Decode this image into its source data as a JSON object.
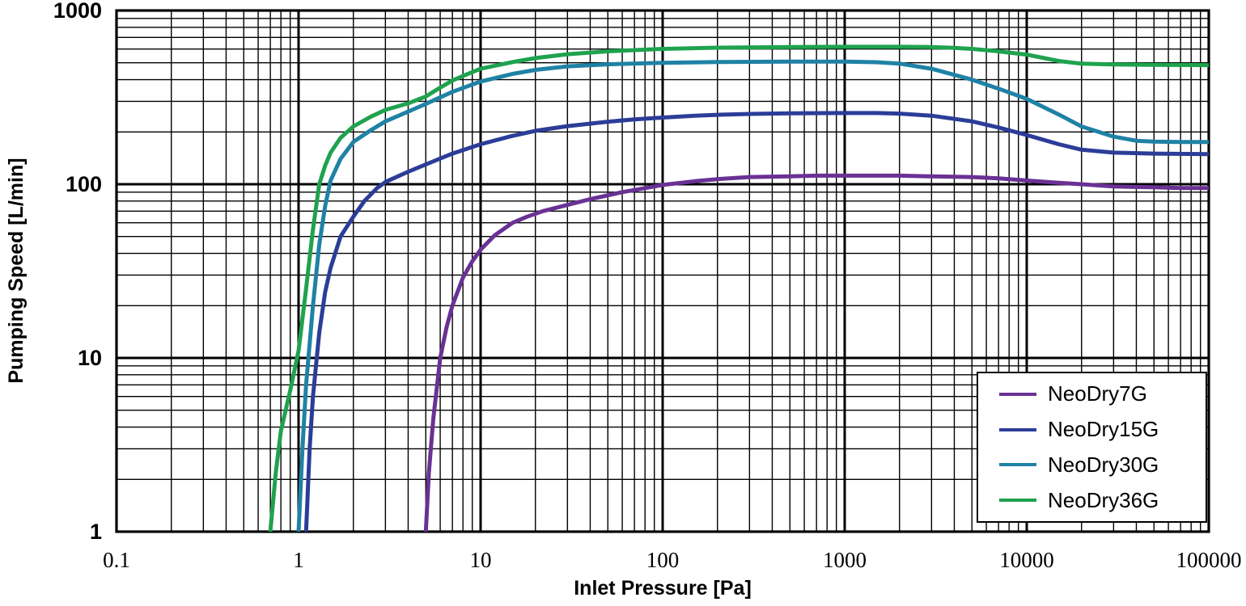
{
  "figure": {
    "background_color": "#ffffff",
    "grid_color": "#000000",
    "border_color": "#000000"
  },
  "axes": {
    "x": {
      "title": "Inlet Pressure [Pa]",
      "scale": "log",
      "min": 0.1,
      "max": 100000,
      "tick_values": [
        0.1,
        1,
        10,
        100,
        1000,
        10000,
        100000
      ],
      "tick_labels": [
        "0.1",
        "1",
        "10",
        "100",
        "1000",
        "10000",
        "100000"
      ]
    },
    "y": {
      "title": "Pumping Speed [L/min]",
      "scale": "log",
      "min": 1,
      "max": 1000,
      "tick_values": [
        1,
        10,
        100,
        1000
      ],
      "tick_labels": [
        "1",
        "10",
        "100",
        "1000"
      ]
    }
  },
  "legend": {
    "position": "inside-lower-right",
    "border_color": "#000000",
    "background": "#ffffff"
  },
  "chart_data": {
    "type": "line",
    "title": "",
    "xlabel": "Inlet Pressure [Pa]",
    "ylabel": "Pumping Speed [L/min]",
    "x_scale": "log",
    "y_scale": "log",
    "xlim": [
      0.1,
      100000
    ],
    "ylim": [
      1,
      1000
    ],
    "grid": true,
    "legend_position": "lower right",
    "series": [
      {
        "name": "NeoDry7G",
        "color": "#6a3194",
        "points": [
          [
            5,
            1
          ],
          [
            5.2,
            2.2
          ],
          [
            5.5,
            4.5
          ],
          [
            6,
            10
          ],
          [
            6.5,
            15
          ],
          [
            7,
            20
          ],
          [
            8,
            29
          ],
          [
            9,
            36
          ],
          [
            10,
            42
          ],
          [
            12,
            51
          ],
          [
            15,
            60
          ],
          [
            18,
            65
          ],
          [
            22,
            70
          ],
          [
            30,
            76
          ],
          [
            40,
            82
          ],
          [
            60,
            90
          ],
          [
            80,
            95
          ],
          [
            100,
            99
          ],
          [
            150,
            104
          ],
          [
            200,
            107
          ],
          [
            300,
            110
          ],
          [
            500,
            111
          ],
          [
            700,
            112
          ],
          [
            1000,
            112
          ],
          [
            2000,
            112
          ],
          [
            3000,
            111
          ],
          [
            5000,
            110
          ],
          [
            7000,
            108
          ],
          [
            10000,
            105
          ],
          [
            15000,
            102
          ],
          [
            20000,
            100
          ],
          [
            30000,
            97
          ],
          [
            50000,
            96
          ],
          [
            70000,
            95
          ],
          [
            100000,
            95
          ]
        ]
      },
      {
        "name": "NeoDry15G",
        "color": "#2b3d98",
        "points": [
          [
            1.1,
            1
          ],
          [
            1.15,
            3
          ],
          [
            1.2,
            6
          ],
          [
            1.3,
            14
          ],
          [
            1.4,
            24
          ],
          [
            1.5,
            33
          ],
          [
            1.7,
            50
          ],
          [
            2,
            65
          ],
          [
            2.3,
            80
          ],
          [
            2.7,
            95
          ],
          [
            3,
            103
          ],
          [
            4,
            118
          ],
          [
            5,
            130
          ],
          [
            7,
            150
          ],
          [
            10,
            170
          ],
          [
            15,
            190
          ],
          [
            20,
            203
          ],
          [
            30,
            216
          ],
          [
            50,
            229
          ],
          [
            70,
            236
          ],
          [
            100,
            242
          ],
          [
            150,
            248
          ],
          [
            200,
            251
          ],
          [
            300,
            254
          ],
          [
            500,
            256
          ],
          [
            1000,
            257
          ],
          [
            1500,
            257
          ],
          [
            2000,
            255
          ],
          [
            3000,
            248
          ],
          [
            5000,
            230
          ],
          [
            7000,
            212
          ],
          [
            10000,
            192
          ],
          [
            15000,
            170
          ],
          [
            20000,
            158
          ],
          [
            30000,
            152
          ],
          [
            50000,
            150
          ],
          [
            100000,
            149
          ]
        ]
      },
      {
        "name": "NeoDry30G",
        "color": "#1f82a5",
        "points": [
          [
            1,
            1
          ],
          [
            1.05,
            3
          ],
          [
            1.1,
            7
          ],
          [
            1.2,
            20
          ],
          [
            1.3,
            45
          ],
          [
            1.4,
            75
          ],
          [
            1.5,
            105
          ],
          [
            1.7,
            140
          ],
          [
            2,
            175
          ],
          [
            2.5,
            205
          ],
          [
            3,
            230
          ],
          [
            4,
            262
          ],
          [
            5,
            290
          ],
          [
            7,
            340
          ],
          [
            10,
            390
          ],
          [
            15,
            432
          ],
          [
            20,
            455
          ],
          [
            30,
            477
          ],
          [
            50,
            490
          ],
          [
            100,
            500
          ],
          [
            200,
            505
          ],
          [
            500,
            508
          ],
          [
            1000,
            508
          ],
          [
            1500,
            504
          ],
          [
            2000,
            495
          ],
          [
            3000,
            462
          ],
          [
            5000,
            400
          ],
          [
            7000,
            355
          ],
          [
            10000,
            310
          ],
          [
            15000,
            252
          ],
          [
            20000,
            215
          ],
          [
            30000,
            188
          ],
          [
            40000,
            178
          ],
          [
            50000,
            176
          ],
          [
            70000,
            175
          ],
          [
            100000,
            175
          ]
        ]
      },
      {
        "name": "NeoDry36G",
        "color": "#1fa24e",
        "points": [
          [
            0.7,
            1
          ],
          [
            0.75,
            2.2
          ],
          [
            0.8,
            3.8
          ],
          [
            0.9,
            6.5
          ],
          [
            1,
            11
          ],
          [
            1.1,
            25
          ],
          [
            1.2,
            55
          ],
          [
            1.3,
            100
          ],
          [
            1.4,
            128
          ],
          [
            1.5,
            152
          ],
          [
            1.7,
            185
          ],
          [
            2,
            215
          ],
          [
            2.5,
            245
          ],
          [
            3,
            268
          ],
          [
            4,
            292
          ],
          [
            5,
            320
          ],
          [
            6,
            360
          ],
          [
            7,
            395
          ],
          [
            8,
            420
          ],
          [
            10,
            462
          ],
          [
            15,
            505
          ],
          [
            20,
            532
          ],
          [
            30,
            560
          ],
          [
            50,
            582
          ],
          [
            100,
            601
          ],
          [
            200,
            611
          ],
          [
            500,
            616
          ],
          [
            1000,
            618
          ],
          [
            2000,
            618
          ],
          [
            3000,
            616
          ],
          [
            4000,
            610
          ],
          [
            5000,
            601
          ],
          [
            7000,
            582
          ],
          [
            10000,
            557
          ],
          [
            15000,
            512
          ],
          [
            20000,
            494
          ],
          [
            30000,
            489
          ],
          [
            50000,
            487
          ],
          [
            100000,
            485
          ]
        ]
      }
    ]
  }
}
